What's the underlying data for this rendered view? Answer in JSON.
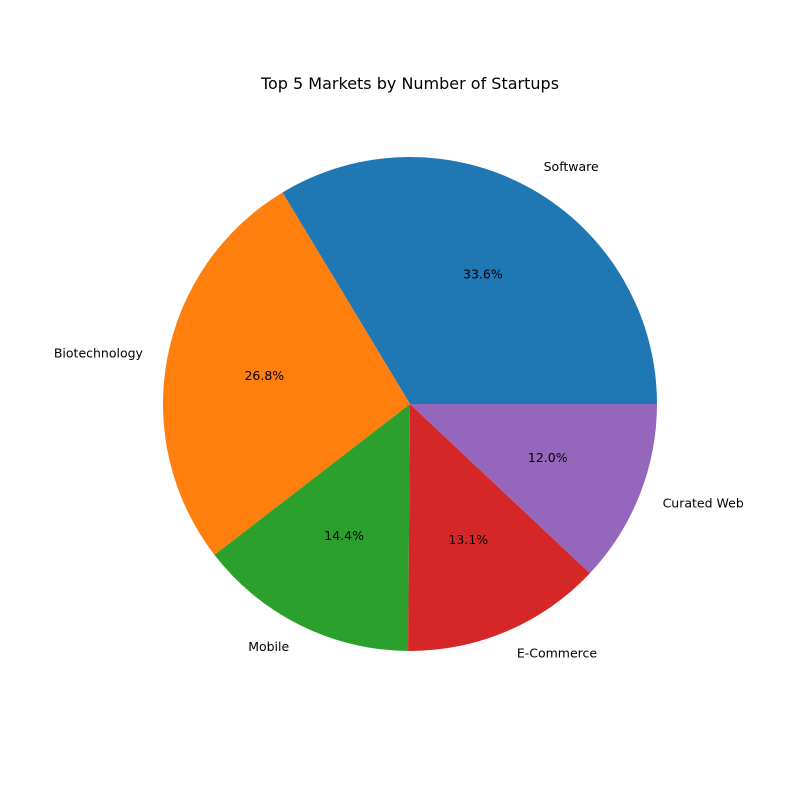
{
  "chart_data": {
    "type": "pie",
    "title": "Top 5 Markets by Number of Startups",
    "categories": [
      "Software",
      "Biotechnology",
      "Mobile",
      "E-Commerce",
      "Curated Web"
    ],
    "values": [
      33.6,
      26.8,
      14.4,
      13.1,
      12.0
    ],
    "percent_labels": [
      "33.6%",
      "26.8%",
      "14.4%",
      "13.1%",
      "12.0%"
    ],
    "colors": [
      "#1f77b4",
      "#ff7f0e",
      "#2ca02c",
      "#d62728",
      "#9467bd"
    ],
    "start_angle_deg": 0,
    "direction": "counterclockwise",
    "legend": "none"
  }
}
